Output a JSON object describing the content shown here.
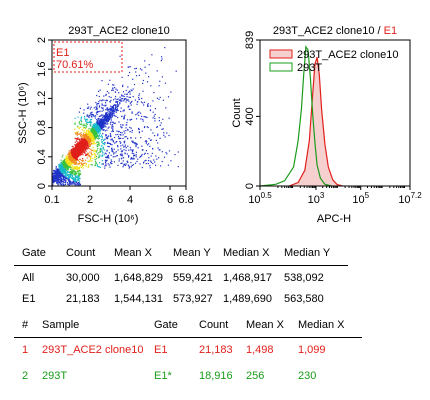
{
  "colors": {
    "gate": "#e0201b",
    "series1_line": "#e0201b",
    "series1_fill": "#f6cfcf",
    "series2_line": "#1a9c1a",
    "background": "#ffffff"
  },
  "chart_data": [
    {
      "type": "scatter",
      "subtype": "density-dot-plot",
      "title": "293T_ACE2 clone10",
      "xlabel": "FSC-H",
      "xlabel_unit": "(10⁶)",
      "ylabel": "SSC-H",
      "ylabel_unit": "(10⁶)",
      "xlim": [
        0.1,
        6.8
      ],
      "ylim": [
        0,
        2
      ],
      "x_ticks": [
        "0.1",
        "2",
        "4",
        "6",
        "6.8"
      ],
      "x_tick_values": [
        0.1,
        2,
        4,
        6,
        6.8
      ],
      "y_ticks": [
        "0",
        "0.4",
        "0.8",
        "1.2",
        "1.6",
        "2"
      ],
      "y_tick_values": [
        0,
        0.4,
        0.8,
        1.2,
        1.6,
        2
      ],
      "density_peak": {
        "x": 1.45,
        "y": 0.52
      },
      "gate": {
        "name": "E1",
        "percent": "70.61%"
      }
    },
    {
      "type": "area",
      "subtype": "histogram",
      "title": "293T_ACE2 clone10",
      "title_sep": " / ",
      "title_gate": "E1",
      "xlabel": "APC-H",
      "ylabel": "Count",
      "x_scale": "log",
      "xlim": [
        0.5,
        7.2
      ],
      "ylim": [
        0,
        839
      ],
      "x_tick_exps": [
        "0.5",
        "3",
        "5",
        "7.2"
      ],
      "x_tick_values": [
        0.5,
        3,
        5,
        7.2
      ],
      "y_ticks": [
        "0",
        "400",
        "839"
      ],
      "y_tick_values": [
        0,
        400,
        839
      ],
      "legend_position": "top-left",
      "series": [
        {
          "name": "293T_ACE2 clone10",
          "filled": true,
          "x": [
            1.8,
            2.2,
            2.5,
            2.7,
            2.85,
            2.95,
            3.05,
            3.15,
            3.25,
            3.4,
            3.55,
            3.75,
            3.95,
            4.2
          ],
          "values": [
            0,
            20,
            90,
            260,
            520,
            700,
            740,
            640,
            440,
            240,
            110,
            35,
            8,
            0
          ]
        },
        {
          "name": "293T",
          "filled": false,
          "x": [
            0.5,
            1.2,
            1.6,
            2.0,
            2.2,
            2.35,
            2.45,
            2.55,
            2.65,
            2.75,
            2.85,
            2.95,
            3.05,
            3.2,
            3.4,
            3.7
          ],
          "values": [
            0,
            10,
            30,
            110,
            260,
            440,
            640,
            800,
            780,
            620,
            420,
            250,
            120,
            45,
            10,
            0
          ]
        }
      ]
    },
    {
      "type": "table",
      "headers": [
        "Gate",
        "Count",
        "Mean X",
        "Mean Y",
        "Median X",
        "Median Y"
      ],
      "rows": [
        [
          "All",
          "30,000",
          "1,648,829",
          "559,421",
          "1,468,917",
          "538,092"
        ],
        [
          "E1",
          "21,183",
          "1,544,131",
          "573,927",
          "1,489,690",
          "563,580"
        ]
      ]
    },
    {
      "type": "table",
      "headers": [
        "#",
        "Sample",
        "Gate",
        "Count",
        "Mean X",
        "Median X"
      ],
      "rows": [
        [
          "1",
          "293T_ACE2 clone10",
          "E1",
          "21,183",
          "1,498",
          "1,099"
        ],
        [
          "2",
          "293T",
          "E1*",
          "18,916",
          "256",
          "230"
        ]
      ]
    }
  ]
}
